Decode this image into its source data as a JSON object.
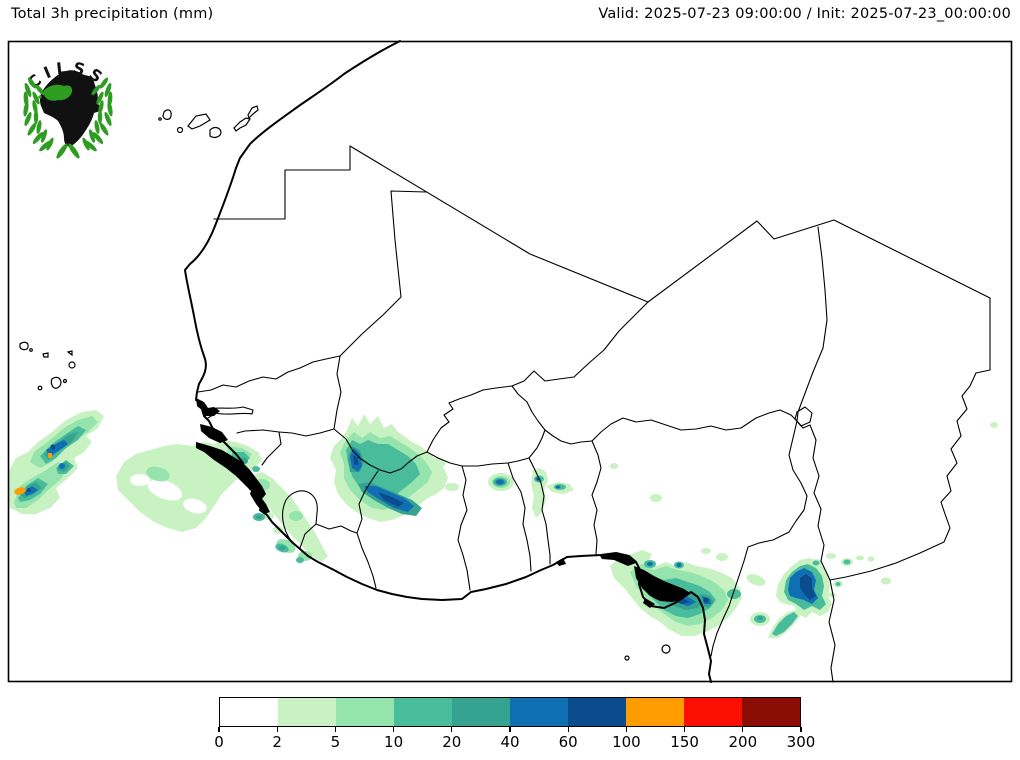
{
  "header": {
    "title": "Total 3h precipitation (mm)",
    "valid": "Valid: 2025-07-23 09:00:00 / Init: 2025-07-23_00:00:00"
  },
  "logo": {
    "text": "CILSS",
    "brand_green": "#2e9c20"
  },
  "colorbar": {
    "boundaries": [
      "0",
      "2",
      "5",
      "10",
      "20",
      "40",
      "60",
      "100",
      "150",
      "200",
      "300"
    ],
    "colors": [
      "#ffffff",
      "#c9f2c3",
      "#96e4ad",
      "#49bd9b",
      "#35a390",
      "#0f6fb2",
      "#0b4d8c",
      "#ff9d00",
      "#fb0f00",
      "#8c0d04"
    ]
  },
  "chart_data": {
    "type": "heatmap",
    "title": "Total 3h precipitation (mm)",
    "valid_time": "2025-07-23 09:00:00",
    "init_time": "2025-07-23_00:00:00",
    "region_depicted": "West Africa",
    "legend_position": "bottom",
    "colorbar_boundaries_mm": [
      0,
      2,
      5,
      10,
      20,
      40,
      60,
      100,
      150,
      200,
      300
    ],
    "colorbar_colors": [
      "#ffffff",
      "#c9f2c3",
      "#96e4ad",
      "#49bd9b",
      "#35a390",
      "#0f6fb2",
      "#0b4d8c",
      "#ff9d00",
      "#fb0f00",
      "#8c0d04"
    ],
    "precipitation_cells": [
      {
        "area": "ocean SW of Cape Verde",
        "max_band_mm": "100-150"
      },
      {
        "area": "ocean west of Guinea / Senegal coast",
        "max_band_mm": "20-40"
      },
      {
        "area": "Guinea coast",
        "max_band_mm": "10-20"
      },
      {
        "area": "southern Mali / upper Guinea",
        "max_band_mm": "60-100"
      },
      {
        "area": "central small cells (Benin/Togo borders)",
        "max_band_mm": "40-60"
      },
      {
        "area": "Niger delta / SW Nigeria coast",
        "max_band_mm": "60-100"
      },
      {
        "area": "Gulf of Guinea south of Nigeria",
        "max_band_mm": "60-100"
      },
      {
        "area": "far east Chad border dot",
        "max_band_mm": "2-5"
      }
    ]
  }
}
